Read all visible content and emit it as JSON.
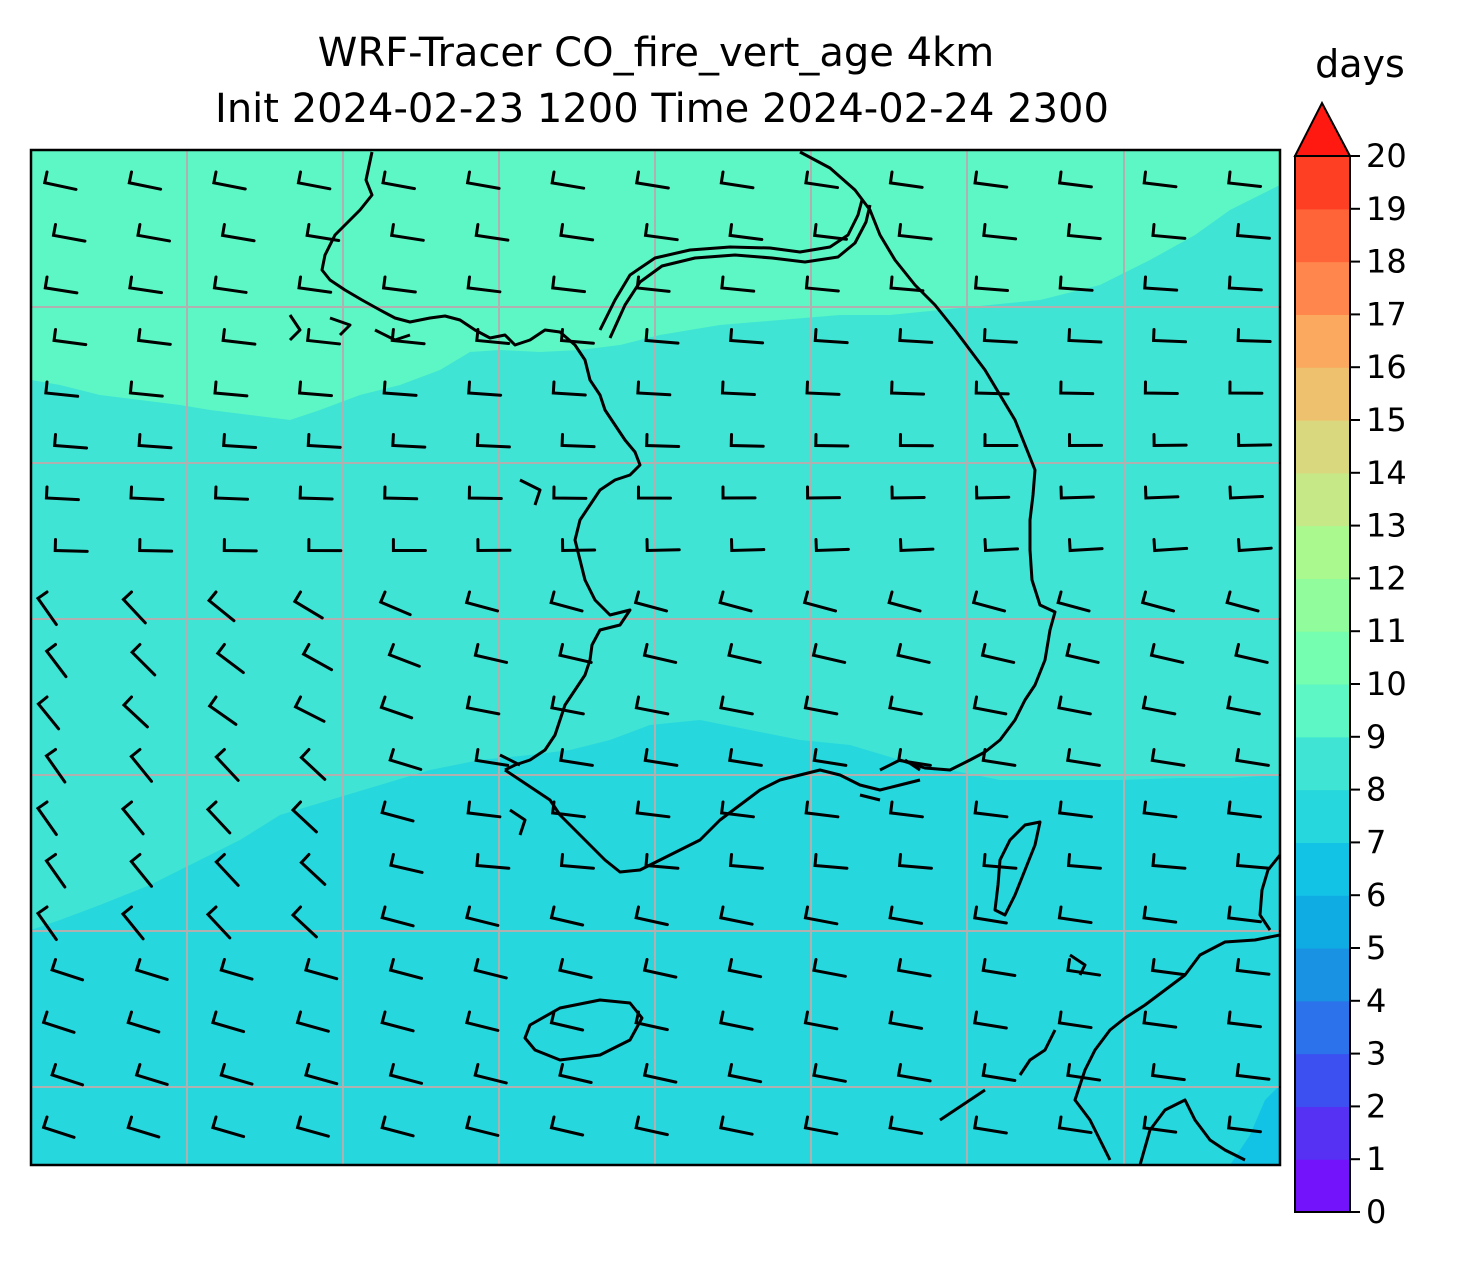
{
  "title": {
    "line1": "WRF-Tracer CO_fire_vert_age 4km",
    "line2": "Init 2024-02-23 1200 Time 2024-02-24 2300"
  },
  "colorbar": {
    "unit": "days",
    "ticks": [
      "0",
      "1",
      "2",
      "3",
      "4",
      "5",
      "6",
      "7",
      "8",
      "9",
      "10",
      "11",
      "12",
      "13",
      "14",
      "15",
      "16",
      "17",
      "18",
      "19",
      "20"
    ],
    "colors": [
      "#7213fb",
      "#5631f3",
      "#3c4ff0",
      "#2c72ea",
      "#1a92e4",
      "#0fabe3",
      "#13c3e6",
      "#26d7dd",
      "#3fe4d4",
      "#5cf7c4",
      "#75fdb0",
      "#90fc9c",
      "#a9f98f",
      "#c6e887",
      "#dad87e",
      "#eec16e",
      "#fba95f",
      "#ff874d",
      "#fe6438",
      "#ff3f24",
      "#ff1911"
    ],
    "extend": "max"
  },
  "map": {
    "region": "Korean Peninsula",
    "field": "CO_fire_vert_age",
    "field_colors": {
      "north": "#5cf7c4",
      "middle": "#3fe4d4",
      "south": "#26d7dd",
      "corner": "#13c3e6"
    },
    "gridlines": true,
    "wind_barbs": true
  }
}
